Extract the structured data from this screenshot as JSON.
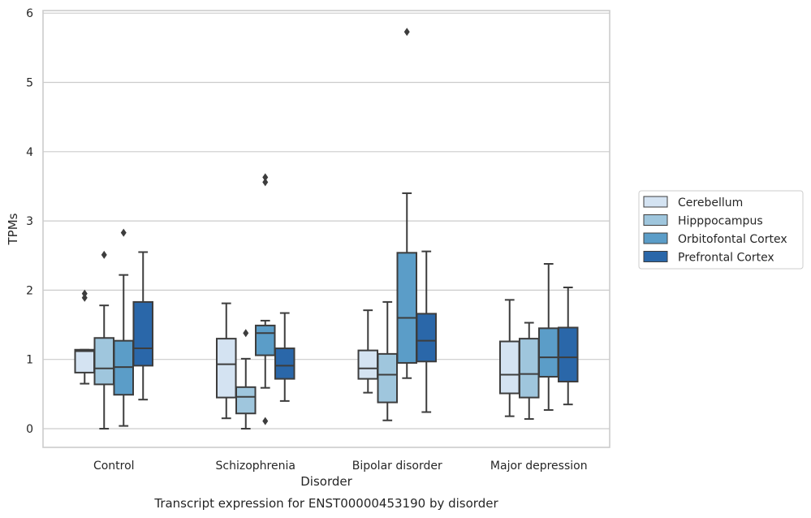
{
  "chart_data": {
    "type": "box",
    "title": "",
    "caption": "Transcript expression for ENST00000453190 by disorder",
    "xlabel": "Disorder",
    "ylabel": "TPMs",
    "ylim": [
      -0.28,
      6.05
    ],
    "yticks": [
      0,
      1,
      2,
      3,
      4,
      5,
      6
    ],
    "grid": "horizontal",
    "legend_position": "right",
    "categories": [
      "Control",
      "Schizophrenia",
      "Bipolar disorder",
      "Major depression"
    ],
    "series": [
      {
        "name": "Cerebellum",
        "color": "#d4e3f2",
        "boxes": [
          {
            "whislo": 0.65,
            "q1": 0.81,
            "med": 1.12,
            "q3": 1.14,
            "whishi": 1.14,
            "fliers": [
              1.89,
              1.95
            ]
          },
          {
            "whislo": 0.15,
            "q1": 0.45,
            "med": 0.93,
            "q3": 1.3,
            "whishi": 1.81,
            "fliers": []
          },
          {
            "whislo": 0.52,
            "q1": 0.72,
            "med": 0.87,
            "q3": 1.13,
            "whishi": 1.71,
            "fliers": []
          },
          {
            "whislo": 0.18,
            "q1": 0.51,
            "med": 0.78,
            "q3": 1.26,
            "whishi": 1.86,
            "fliers": []
          }
        ]
      },
      {
        "name": "Hipppocampus",
        "color": "#9fc6dd",
        "boxes": [
          {
            "whislo": 0.0,
            "q1": 0.64,
            "med": 0.87,
            "q3": 1.31,
            "whishi": 1.78,
            "fliers": [
              2.51
            ]
          },
          {
            "whislo": 0.0,
            "q1": 0.22,
            "med": 0.46,
            "q3": 0.6,
            "whishi": 1.01,
            "fliers": [
              1.38
            ]
          },
          {
            "whislo": 0.12,
            "q1": 0.38,
            "med": 0.78,
            "q3": 1.08,
            "whishi": 1.83,
            "fliers": []
          },
          {
            "whislo": 0.14,
            "q1": 0.45,
            "med": 0.79,
            "q3": 1.3,
            "whishi": 1.53,
            "fliers": []
          }
        ]
      },
      {
        "name": "Orbitofontal Cortex",
        "color": "#5b9dc8",
        "boxes": [
          {
            "whislo": 0.04,
            "q1": 0.49,
            "med": 0.89,
            "q3": 1.27,
            "whishi": 2.22,
            "fliers": [
              2.83
            ]
          },
          {
            "whislo": 0.59,
            "q1": 1.06,
            "med": 1.38,
            "q3": 1.49,
            "whishi": 1.56,
            "fliers": [
              0.11,
              3.56,
              3.63
            ]
          },
          {
            "whislo": 0.73,
            "q1": 0.95,
            "med": 1.6,
            "q3": 2.54,
            "whishi": 3.4,
            "fliers": [
              5.73
            ]
          },
          {
            "whislo": 0.27,
            "q1": 0.75,
            "med": 1.03,
            "q3": 1.45,
            "whishi": 2.38,
            "fliers": []
          }
        ]
      },
      {
        "name": "Prefrontal Cortex",
        "color": "#2a67a9",
        "boxes": [
          {
            "whislo": 0.42,
            "q1": 0.91,
            "med": 1.16,
            "q3": 1.83,
            "whishi": 2.55,
            "fliers": []
          },
          {
            "whislo": 0.4,
            "q1": 0.72,
            "med": 0.91,
            "q3": 1.16,
            "whishi": 1.67,
            "fliers": []
          },
          {
            "whislo": 0.24,
            "q1": 0.97,
            "med": 1.27,
            "q3": 1.66,
            "whishi": 2.56,
            "fliers": []
          },
          {
            "whislo": 0.35,
            "q1": 0.68,
            "med": 1.03,
            "q3": 1.46,
            "whishi": 2.04,
            "fliers": []
          }
        ]
      }
    ]
  }
}
